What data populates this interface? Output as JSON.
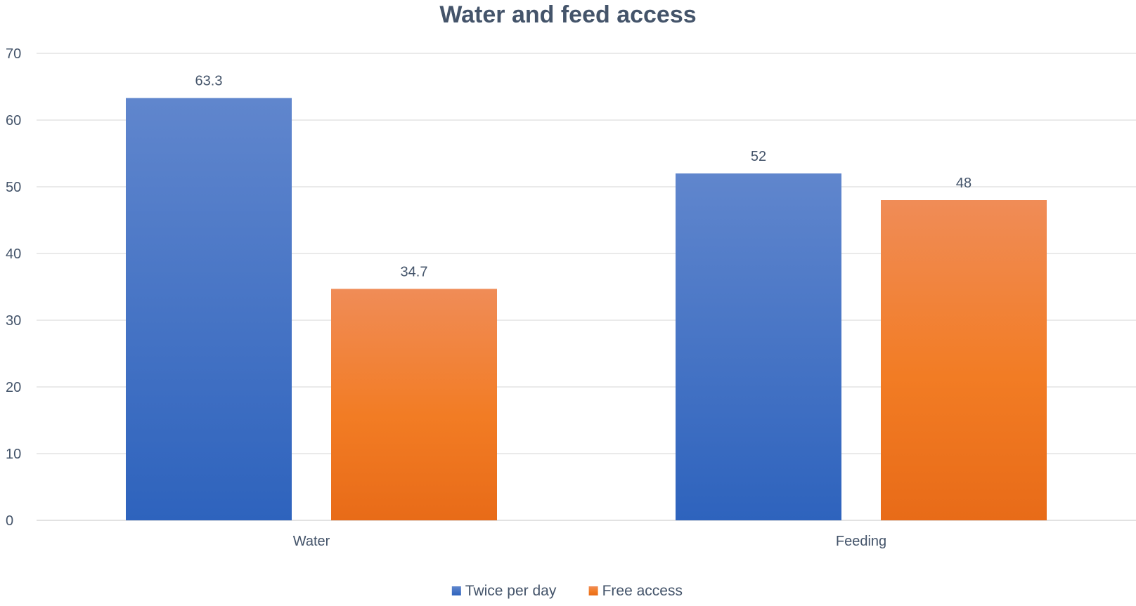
{
  "chart_data": {
    "type": "bar",
    "title": "Water and feed access",
    "xlabel": "",
    "ylabel": "",
    "categories": [
      "Water",
      "Feeding"
    ],
    "series": [
      {
        "name": "Twice per day",
        "values": [
          63.3,
          52
        ],
        "labels": [
          "63.3",
          "52"
        ],
        "color": "#4472c4"
      },
      {
        "name": "Free access",
        "values": [
          34.7,
          48
        ],
        "labels": [
          "34.7",
          "48"
        ],
        "color": "#ed7d31"
      }
    ],
    "ylim": [
      0,
      70
    ],
    "yticks": [
      0,
      10,
      20,
      30,
      40,
      50,
      60,
      70
    ],
    "grid": true,
    "legend": "bottom-center"
  }
}
